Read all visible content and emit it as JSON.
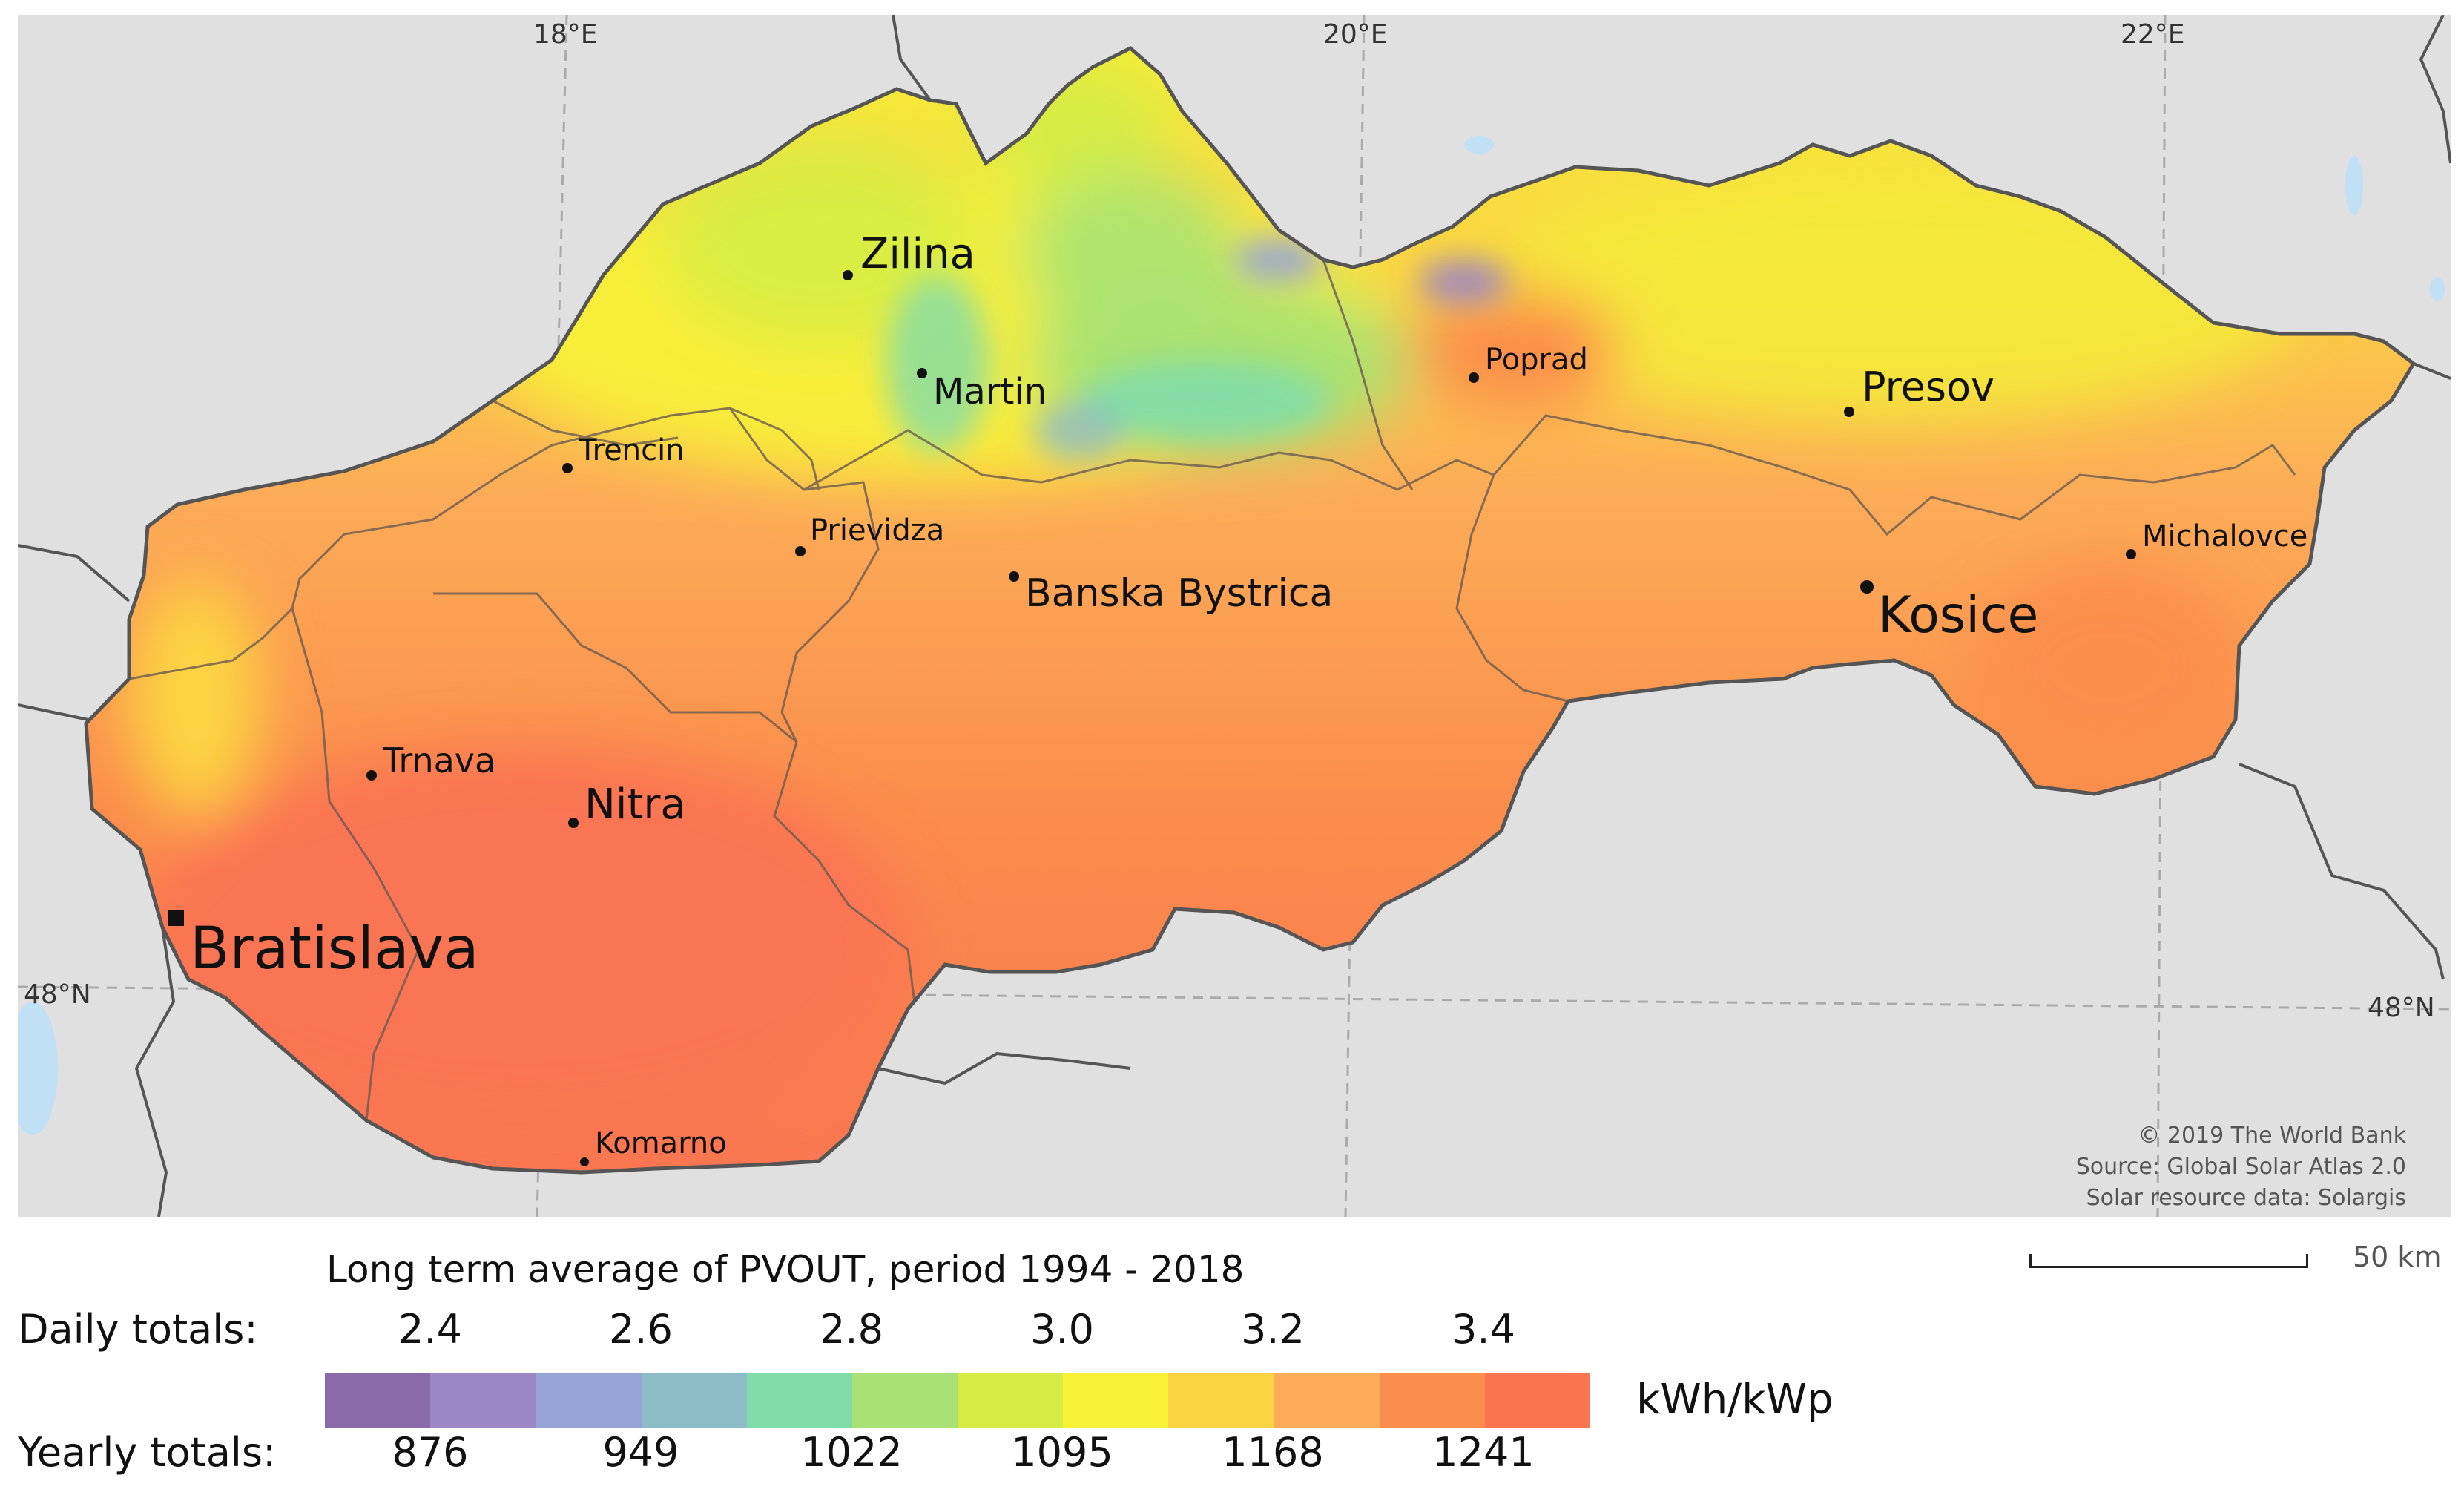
{
  "map": {
    "grid": {
      "lon_labels": [
        "18°E",
        "20°E",
        "22°E"
      ],
      "lat_labels_left": [
        "48°N"
      ],
      "lat_labels_right": [
        "48°N"
      ]
    },
    "cities": [
      {
        "name": "Zilina",
        "size": "large",
        "capital": false
      },
      {
        "name": "Martin",
        "size": "medium",
        "capital": false
      },
      {
        "name": "Poprad",
        "size": "small",
        "capital": false
      },
      {
        "name": "Presov",
        "size": "medium",
        "capital": false
      },
      {
        "name": "Trencin",
        "size": "small",
        "capital": false
      },
      {
        "name": "Prievidza",
        "size": "small",
        "capital": false
      },
      {
        "name": "Banska Bystrica",
        "size": "medium",
        "capital": false
      },
      {
        "name": "Michalovce",
        "size": "small",
        "capital": false
      },
      {
        "name": "Kosice",
        "size": "xlarge",
        "capital": false
      },
      {
        "name": "Trnava",
        "size": "medium",
        "capital": false
      },
      {
        "name": "Nitra",
        "size": "large",
        "capital": false
      },
      {
        "name": "Bratislava",
        "size": "xxlarge",
        "capital": true
      },
      {
        "name": "Komarno",
        "size": "small",
        "capital": false
      }
    ],
    "credits": [
      "© 2019 The World Bank",
      "Source: Global Solar Atlas 2.0",
      "Solar resource data: Solargis"
    ],
    "scale_label": "50 km"
  },
  "legend": {
    "title": "Long term average of PVOUT, period 1994 - 2018",
    "daily_label": "Daily totals:",
    "yearly_label": "Yearly totals:",
    "daily_ticks": [
      "2.4",
      "2.6",
      "2.8",
      "3.0",
      "3.2",
      "3.4"
    ],
    "yearly_ticks": [
      "876",
      "949",
      "1022",
      "1095",
      "1168",
      "1241"
    ],
    "unit": "kWh/kWp",
    "colors": [
      "#8b6aaa",
      "#9a87c4",
      "#98a4d6",
      "#8dbcc6",
      "#82dcaa",
      "#a8e274",
      "#d6ec44",
      "#f7f236",
      "#fbd443",
      "#fcac58",
      "#fb8e4c",
      "#fa7452"
    ]
  }
}
